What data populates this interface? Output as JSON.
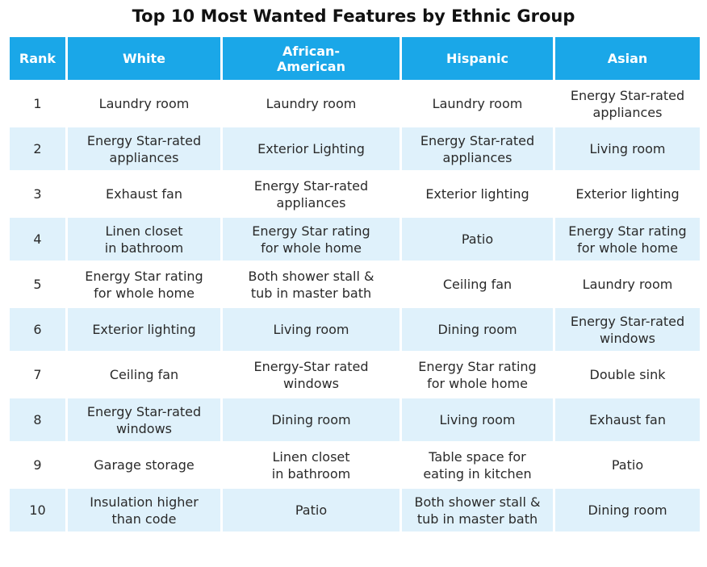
{
  "title": "Top 10 Most Wanted Features by Ethnic Group",
  "columns": [
    "Rank",
    "White",
    "African-\nAmerican",
    "Hispanic",
    "Asian"
  ],
  "rows": [
    [
      "1",
      "Laundry room",
      "Laundry room",
      "Laundry room",
      "Energy Star-rated\nappliances"
    ],
    [
      "2",
      "Energy Star-rated\nappliances",
      "Exterior Lighting",
      "Energy Star-rated\nappliances",
      "Living room"
    ],
    [
      "3",
      "Exhaust fan",
      "Energy Star-rated\nappliances",
      "Exterior lighting",
      "Exterior lighting"
    ],
    [
      "4",
      "Linen closet\nin bathroom",
      "Energy Star rating\nfor whole home",
      "Patio",
      "Energy Star rating\nfor whole home"
    ],
    [
      "5",
      "Energy Star rating\nfor whole home",
      "Both shower stall &\ntub in master bath",
      "Ceiling fan",
      "Laundry room"
    ],
    [
      "6",
      "Exterior lighting",
      "Living room",
      "Dining room",
      "Energy Star-rated\nwindows"
    ],
    [
      "7",
      "Ceiling fan",
      "Energy-Star rated\nwindows",
      "Energy Star rating\nfor whole home",
      "Double sink"
    ],
    [
      "8",
      "Energy Star-rated\nwindows",
      "Dining room",
      "Living room",
      "Exhaust fan"
    ],
    [
      "9",
      "Garage storage",
      "Linen closet\nin bathroom",
      "Table space for\neating in kitchen",
      "Patio"
    ],
    [
      "10",
      "Insulation higher\nthan code",
      "Patio",
      "Both shower stall &\ntub in master bath",
      "Dining room"
    ]
  ],
  "colors": {
    "header_bg": "#1aa7e8",
    "header_text": "#ffffff",
    "row_shade": "#dff1fb"
  }
}
